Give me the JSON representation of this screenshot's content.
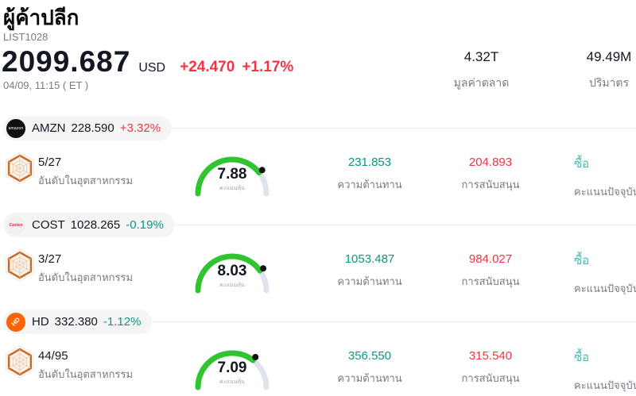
{
  "header": {
    "title": "ผู้ค้าปลีก",
    "subtitle": "LIST1028",
    "price": "2099.687",
    "currency": "USD",
    "change_abs": "+24.470",
    "change_pct": "+1.17%",
    "datetime": "04/09, 11:15 ( ET )",
    "stats": [
      {
        "value": "4.32T",
        "label": "มูลค่าตลาด"
      },
      {
        "value": "49.49M",
        "label": "ปริมาตร"
      }
    ]
  },
  "labels": {
    "rank": "อันดับในอุตสาหกรรม",
    "score": "คะแนนหุ้น",
    "resistance": "ความต้านทาน",
    "support": "การสนับสนุน",
    "signal": "คะแนนปัจจุบัน"
  },
  "colors": {
    "up_red": "#f23645",
    "down_teal": "#089981",
    "buy_teal": "#4ab9ad",
    "gauge_green": "#31c431",
    "gauge_track": "#e0e3eb",
    "badge_orange": "#c96a25"
  },
  "rows": [
    {
      "symbol": "AMZN",
      "price": "228.590",
      "change": "+3.32%",
      "change_dir": "up",
      "logo_text": "amazon",
      "rank": "5/27",
      "score": "7.88",
      "resistance": "231.853",
      "support": "204.893",
      "signal": "ซื้อ"
    },
    {
      "symbol": "COST",
      "price": "1028.265",
      "change": "-0.19%",
      "change_dir": "down",
      "logo_text": "Costco",
      "rank": "3/27",
      "score": "8.03",
      "resistance": "1053.487",
      "support": "984.027",
      "signal": "ซื้อ"
    },
    {
      "symbol": "HD",
      "price": "332.380",
      "change": "-1.12%",
      "change_dir": "down",
      "logo_text": "HD",
      "rank": "44/95",
      "score": "7.09",
      "resistance": "356.550",
      "support": "315.540",
      "signal": "ซื้อ"
    }
  ]
}
